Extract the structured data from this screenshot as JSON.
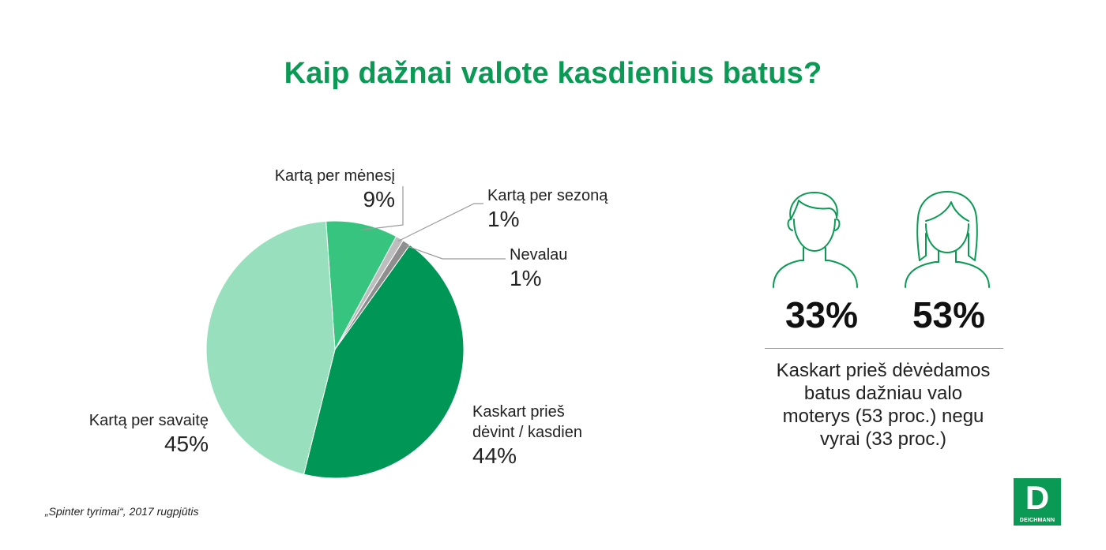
{
  "title": "Kaip dažnai valote kasdienius batus?",
  "chart_data": {
    "type": "pie",
    "slices": [
      {
        "label": "Kartą per mėnesį",
        "value": 9,
        "display": "9%",
        "color": "#36c47e"
      },
      {
        "label": "Kartą per sezoną",
        "value": 1,
        "display": "1%",
        "color": "#bdbdbd"
      },
      {
        "label": "Nevalau",
        "value": 1,
        "display": "1%",
        "color": "#8e8e8e"
      },
      {
        "label_lines": [
          "Kaskart prieš",
          "dėvint / kasdien"
        ],
        "value": 44,
        "display": "44%",
        "color": "#009655"
      },
      {
        "label": "Kartą per savaitę",
        "value": 45,
        "display": "45%",
        "color": "#98e0bd"
      }
    ]
  },
  "comparison": {
    "men": {
      "icon": "man-icon",
      "value": "33%"
    },
    "women": {
      "icon": "woman-icon",
      "value": "53%"
    },
    "summary_lines": [
      "Kaskart prieš dėvėdamos",
      "batus dažniau valo",
      "moterys (53 proc.) negu",
      "vyrai (33 proc.)"
    ]
  },
  "source": "„Spinter tyrimai“, 2017 rugpjūtis",
  "logo": {
    "letter": "D",
    "brand": "DEICHMANN"
  },
  "colors": {
    "accent": "#0a9a55"
  }
}
